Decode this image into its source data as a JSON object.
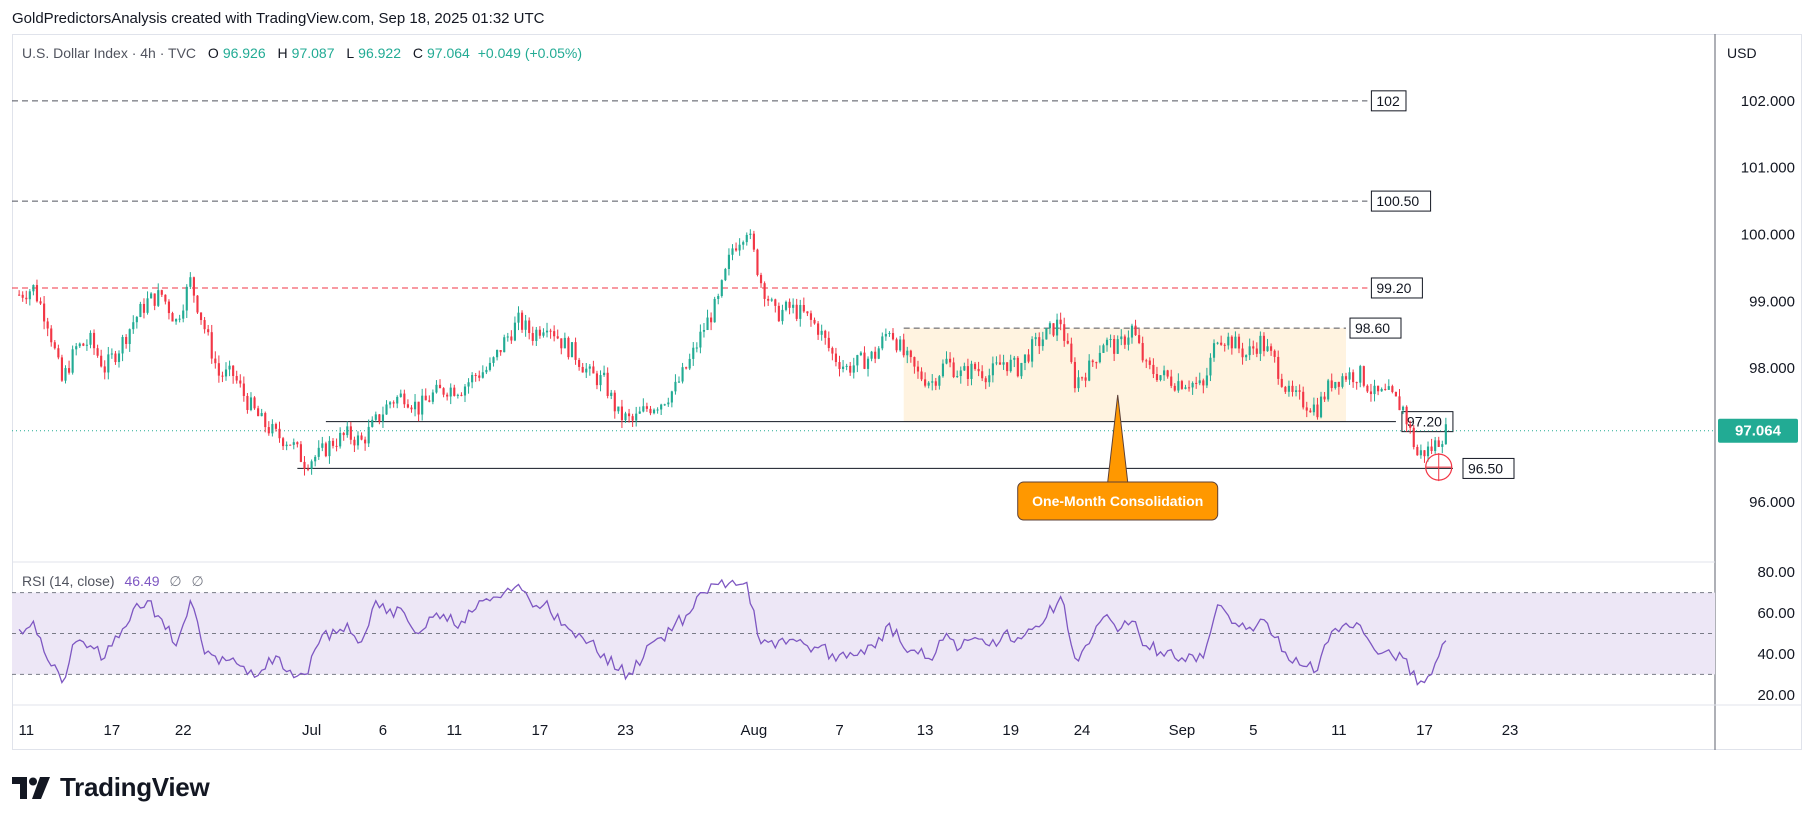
{
  "header": {
    "attribution": "GoldPredictorsAnalysis created with TradingView.com, Sep 18, 2025 01:32 UTC"
  },
  "legend": {
    "symbol": "U.S. Dollar Index · 4h · TVC",
    "open_label": "O",
    "open": "96.926",
    "high_label": "H",
    "high": "97.087",
    "low_label": "L",
    "low": "96.922",
    "close_label": "C",
    "close": "97.064",
    "change": "+0.049 (+0.05%)"
  },
  "currency": "USD",
  "rsi_legend": {
    "label": "RSI (14, close)",
    "value": "46.49",
    "na1": "∅",
    "na2": "∅"
  },
  "footer": {
    "logo_text": "TradingView"
  },
  "colors": {
    "up": "#22ab94",
    "down": "#f23645",
    "rsi": "#7e57c2",
    "rsi_band": "#ede7f6",
    "consolidation": "#fff3e0",
    "callout": "#ff9800",
    "resistance_red": "#f23645",
    "last_price": "#22ab94",
    "grid_dash": "#787b86"
  },
  "chart_data": [
    {
      "type": "candlestick",
      "title": "U.S. Dollar Index · 4h · TVC",
      "ylim": [
        95.1,
        103.0
      ],
      "y_ticks": [
        "96.000",
        "97.000",
        "98.000",
        "99.000",
        "100.000",
        "101.000",
        "102.000"
      ],
      "x_tick_labels": [
        "11",
        "17",
        "22",
        "Jul",
        "6",
        "11",
        "17",
        "23",
        "Aug",
        "7",
        "13",
        "19",
        "24",
        "Sep",
        "5",
        "11",
        "17",
        "23"
      ],
      "x_tick_positions": [
        0.5,
        6.5,
        11.5,
        20.5,
        25.5,
        30.5,
        36.5,
        42.5,
        51.5,
        57.5,
        63.5,
        69.5,
        74.5,
        81.5,
        86.5,
        92.5,
        98.5,
        104.5
      ],
      "price_path": [
        [
          0,
          99.1
        ],
        [
          1,
          99.2
        ],
        [
          2,
          98.7
        ],
        [
          3,
          97.8
        ],
        [
          4,
          98.3
        ],
        [
          5,
          98.4
        ],
        [
          6,
          98.0
        ],
        [
          7,
          98.3
        ],
        [
          8,
          98.7
        ],
        [
          9,
          99.0
        ],
        [
          10,
          99.1
        ],
        [
          11,
          98.7
        ],
        [
          12,
          99.3
        ],
        [
          13,
          98.6
        ],
        [
          14,
          97.9
        ],
        [
          15,
          97.9
        ],
        [
          16,
          97.5
        ],
        [
          17,
          97.2
        ],
        [
          18,
          97.0
        ],
        [
          19,
          96.9
        ],
        [
          20,
          96.6
        ],
        [
          21,
          96.7
        ],
        [
          22,
          96.9
        ],
        [
          23,
          97.0
        ],
        [
          24,
          96.9
        ],
        [
          25,
          97.2
        ],
        [
          26,
          97.5
        ],
        [
          27,
          97.6
        ],
        [
          28,
          97.4
        ],
        [
          29,
          97.6
        ],
        [
          30,
          97.7
        ],
        [
          31,
          97.7
        ],
        [
          32,
          97.9
        ],
        [
          33,
          98.0
        ],
        [
          34,
          98.4
        ],
        [
          35,
          98.7
        ],
        [
          36,
          98.5
        ],
        [
          37,
          98.7
        ],
        [
          38,
          98.4
        ],
        [
          39,
          98.2
        ],
        [
          40,
          97.9
        ],
        [
          41,
          97.8
        ],
        [
          42,
          97.3
        ],
        [
          43,
          97.2
        ],
        [
          44,
          97.4
        ],
        [
          45,
          97.5
        ],
        [
          46,
          97.7
        ],
        [
          47,
          98.1
        ],
        [
          48,
          98.6
        ],
        [
          49,
          99.0
        ],
        [
          50,
          99.8
        ],
        [
          51,
          100.1
        ],
        [
          52,
          99.3
        ],
        [
          53,
          98.8
        ],
        [
          54,
          98.9
        ],
        [
          55,
          98.8
        ],
        [
          56,
          98.6
        ],
        [
          57,
          98.2
        ],
        [
          58,
          98.0
        ],
        [
          59,
          98.1
        ],
        [
          60,
          98.2
        ],
        [
          61,
          98.6
        ],
        [
          62,
          98.2
        ],
        [
          63,
          97.9
        ],
        [
          64,
          97.8
        ],
        [
          65,
          98.1
        ],
        [
          66,
          97.9
        ],
        [
          67,
          98.0
        ],
        [
          68,
          97.9
        ],
        [
          69,
          98.1
        ],
        [
          70,
          98.0
        ],
        [
          71,
          98.3
        ],
        [
          72,
          98.5
        ],
        [
          73,
          98.7
        ],
        [
          74,
          97.8
        ],
        [
          75,
          98.0
        ],
        [
          76,
          98.4
        ],
        [
          77,
          98.3
        ],
        [
          78,
          98.6
        ],
        [
          79,
          98.0
        ],
        [
          80,
          97.9
        ],
        [
          81,
          97.8
        ],
        [
          82,
          97.8
        ],
        [
          83,
          97.7
        ],
        [
          84,
          98.5
        ],
        [
          85,
          98.4
        ],
        [
          86,
          98.2
        ],
        [
          87,
          98.4
        ],
        [
          88,
          98.1
        ],
        [
          89,
          97.6
        ],
        [
          90,
          97.5
        ],
        [
          91,
          97.4
        ],
        [
          92,
          97.8
        ],
        [
          93,
          97.9
        ],
        [
          94,
          97.9
        ],
        [
          95,
          97.6
        ],
        [
          96,
          97.6
        ],
        [
          97,
          97.4
        ],
        [
          98,
          96.7
        ],
        [
          99,
          96.8
        ],
        [
          100,
          97.06
        ]
      ],
      "horizontal_levels": [
        {
          "value": 102.0,
          "label": "102",
          "style": "dashed-gray"
        },
        {
          "value": 100.5,
          "label": "100.50",
          "style": "dashed-gray"
        },
        {
          "value": 99.2,
          "label": "99.20",
          "style": "dashed-red"
        },
        {
          "value": 98.6,
          "label": "98.60",
          "style": "dashed-gray"
        },
        {
          "value": 97.2,
          "label": "97.20",
          "style": "solid-black"
        },
        {
          "value": 96.5,
          "label": "96.50",
          "style": "solid-black"
        }
      ],
      "consolidation_zone": {
        "x_from": 62,
        "x_to": 93,
        "y_from": 97.2,
        "y_to": 98.6
      },
      "annotation": {
        "text": "One-Month Consolidation",
        "x": 77,
        "y": 97.6
      },
      "last_price": {
        "value": 97.064,
        "label": "97.064"
      },
      "low_marker": {
        "x": 99.5,
        "y": 96.55
      }
    },
    {
      "type": "line",
      "series": [
        {
          "name": "RSI (14, close)",
          "last_value": 46.49
        }
      ],
      "ylim": [
        15,
        85
      ],
      "y_ticks": [
        "20.00",
        "40.00",
        "60.00",
        "80.00"
      ],
      "bands": [
        30,
        50,
        70
      ],
      "rsi_path": [
        [
          0,
          52
        ],
        [
          1,
          56
        ],
        [
          2,
          37
        ],
        [
          3,
          26
        ],
        [
          4,
          46
        ],
        [
          5,
          44
        ],
        [
          6,
          38
        ],
        [
          7,
          48
        ],
        [
          8,
          62
        ],
        [
          9,
          66
        ],
        [
          10,
          57
        ],
        [
          11,
          44
        ],
        [
          12,
          66
        ],
        [
          13,
          40
        ],
        [
          14,
          35
        ],
        [
          15,
          38
        ],
        [
          16,
          30
        ],
        [
          17,
          32
        ],
        [
          18,
          39
        ],
        [
          19,
          32
        ],
        [
          20,
          30
        ],
        [
          21,
          45
        ],
        [
          22,
          52
        ],
        [
          23,
          55
        ],
        [
          24,
          46
        ],
        [
          25,
          66
        ],
        [
          26,
          62
        ],
        [
          27,
          60
        ],
        [
          28,
          50
        ],
        [
          29,
          58
        ],
        [
          30,
          56
        ],
        [
          31,
          56
        ],
        [
          32,
          62
        ],
        [
          33,
          66
        ],
        [
          34,
          70
        ],
        [
          35,
          74
        ],
        [
          36,
          63
        ],
        [
          37,
          66
        ],
        [
          38,
          54
        ],
        [
          39,
          48
        ],
        [
          40,
          46
        ],
        [
          41,
          40
        ],
        [
          42,
          32
        ],
        [
          43,
          30
        ],
        [
          44,
          44
        ],
        [
          45,
          48
        ],
        [
          46,
          55
        ],
        [
          47,
          60
        ],
        [
          48,
          70
        ],
        [
          49,
          74
        ],
        [
          50,
          76
        ],
        [
          51,
          75
        ],
        [
          52,
          45
        ],
        [
          53,
          43
        ],
        [
          54,
          47
        ],
        [
          55,
          45
        ],
        [
          56,
          43
        ],
        [
          57,
          40
        ],
        [
          58,
          38
        ],
        [
          59,
          42
        ],
        [
          60,
          43
        ],
        [
          61,
          55
        ],
        [
          62,
          43
        ],
        [
          63,
          40
        ],
        [
          64,
          37
        ],
        [
          65,
          50
        ],
        [
          66,
          43
        ],
        [
          67,
          48
        ],
        [
          68,
          44
        ],
        [
          69,
          50
        ],
        [
          70,
          48
        ],
        [
          71,
          52
        ],
        [
          72,
          58
        ],
        [
          73,
          68
        ],
        [
          74,
          38
        ],
        [
          75,
          45
        ],
        [
          76,
          58
        ],
        [
          77,
          51
        ],
        [
          78,
          56
        ],
        [
          79,
          44
        ],
        [
          80,
          41
        ],
        [
          81,
          38
        ],
        [
          82,
          40
        ],
        [
          83,
          38
        ],
        [
          84,
          64
        ],
        [
          85,
          55
        ],
        [
          86,
          52
        ],
        [
          87,
          57
        ],
        [
          88,
          48
        ],
        [
          89,
          37
        ],
        [
          90,
          34
        ],
        [
          91,
          32
        ],
        [
          92,
          51
        ],
        [
          93,
          55
        ],
        [
          94,
          54
        ],
        [
          95,
          42
        ],
        [
          96,
          42
        ],
        [
          97,
          38
        ],
        [
          98,
          25
        ],
        [
          99,
          30
        ],
        [
          100,
          46.49
        ]
      ],
      "last_value_label": "46.49"
    }
  ]
}
